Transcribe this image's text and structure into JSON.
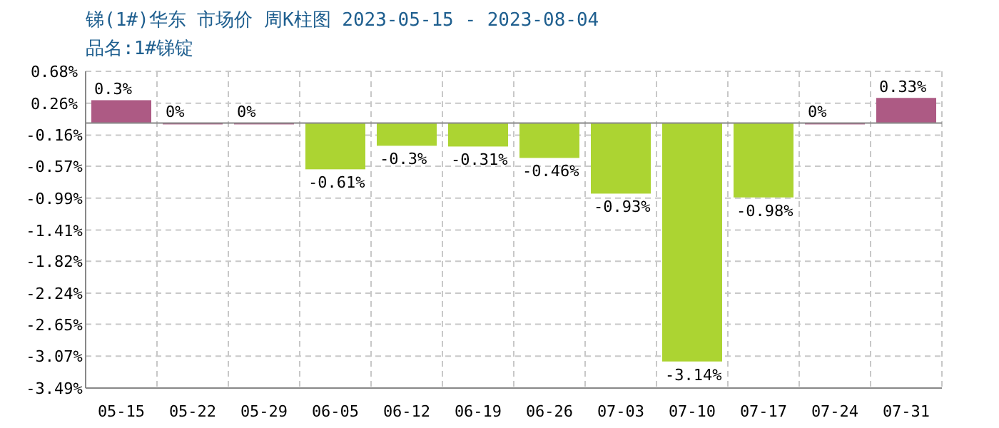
{
  "chart_data": {
    "type": "bar",
    "title": "锑(1#)华东 市场价 周K柱图 2023-05-15 - 2023-08-04",
    "subtitle": "品名:1#锑锭",
    "categories": [
      "05-15",
      "05-22",
      "05-29",
      "06-05",
      "06-12",
      "06-19",
      "06-26",
      "07-03",
      "07-10",
      "07-17",
      "07-24",
      "07-31"
    ],
    "values": [
      0.3,
      0,
      0,
      -0.61,
      -0.3,
      -0.31,
      -0.46,
      -0.93,
      -3.14,
      -0.98,
      0,
      0.33
    ],
    "value_labels": [
      "0.3%",
      "0%",
      "0%",
      "-0.61%",
      "-0.3%",
      "-0.31%",
      "-0.46%",
      "-0.93%",
      "-3.14%",
      "-0.98%",
      "0%",
      "0.33%"
    ],
    "colors": [
      "#ad5a84",
      "#ad5a84",
      "#ad5a84",
      "#acd432",
      "#acd432",
      "#acd432",
      "#acd432",
      "#acd432",
      "#acd432",
      "#acd432",
      "#ad5a84",
      "#ad5a84"
    ],
    "ylim": [
      -3.49,
      0.68
    ],
    "yticks": [
      {
        "value": 0.68,
        "label": "0.68%"
      },
      {
        "value": 0.26,
        "label": "0.26%"
      },
      {
        "value": -0.16,
        "label": "-0.16%"
      },
      {
        "value": -0.57,
        "label": "-0.57%"
      },
      {
        "value": -0.99,
        "label": "-0.99%"
      },
      {
        "value": -1.41,
        "label": "-1.41%"
      },
      {
        "value": -1.82,
        "label": "-1.82%"
      },
      {
        "value": -2.24,
        "label": "-2.24%"
      },
      {
        "value": -2.65,
        "label": "-2.65%"
      },
      {
        "value": -3.07,
        "label": "-3.07%"
      },
      {
        "value": -3.49,
        "label": "-3.49%"
      }
    ],
    "grid": true
  }
}
